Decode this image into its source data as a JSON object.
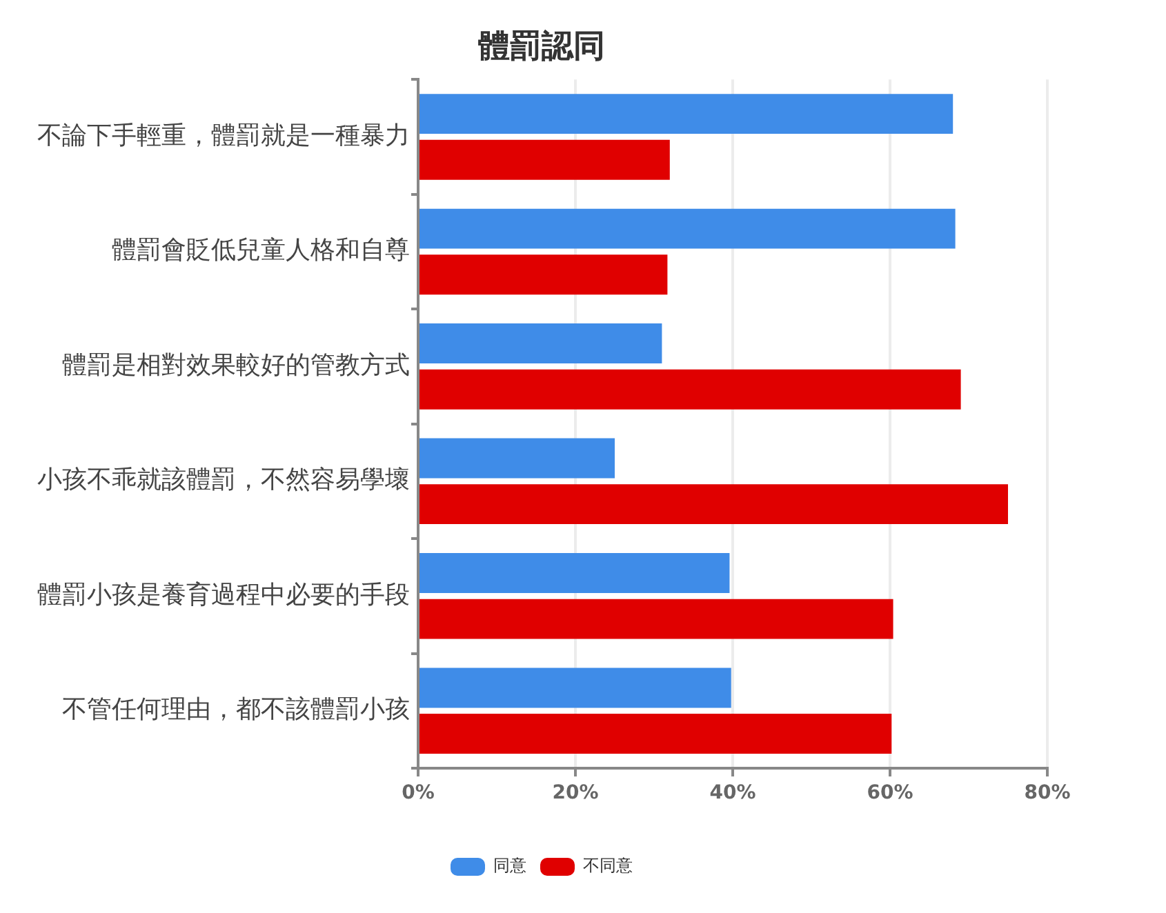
{
  "chart_data": {
    "type": "bar",
    "orientation": "horizontal",
    "title": "體罰認同",
    "categories": [
      "不論下手輕重，體罰就是一種暴力",
      "體罰會貶低兒童人格和自尊",
      "體罰是相對效果較好的管教方式",
      "小孩不乖就該體罰，不然容易學壞",
      "體罰小孩是養育過程中必要的手段",
      "不管任何理由，都不該體罰小孩"
    ],
    "series": [
      {
        "name": "同意",
        "color": "#3f8ce8",
        "values": [
          68,
          68.3,
          31,
          25,
          39.6,
          39.8
        ]
      },
      {
        "name": "不同意",
        "color": "#e00000",
        "values": [
          32,
          31.7,
          69,
          75,
          60.4,
          60.2
        ]
      }
    ],
    "xlim": [
      0,
      80
    ],
    "xticks": [
      {
        "value": 0,
        "label": "0%"
      },
      {
        "value": 20,
        "label": "20%"
      },
      {
        "value": 40,
        "label": "40%"
      },
      {
        "value": 60,
        "label": "60%"
      },
      {
        "value": 80,
        "label": "80%"
      }
    ],
    "grid": "x",
    "legend": "bottom"
  }
}
